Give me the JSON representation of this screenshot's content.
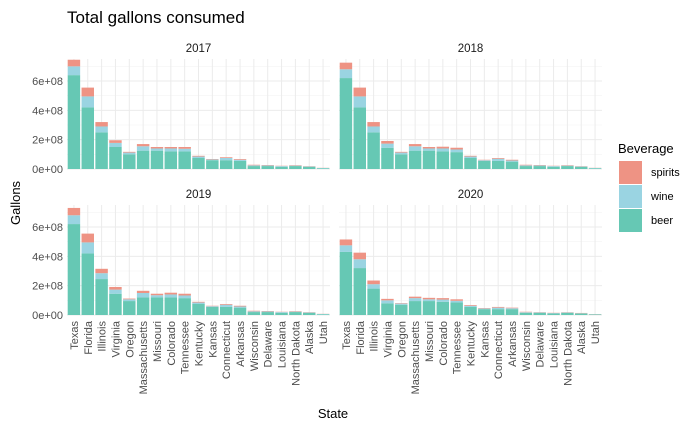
{
  "chart_data": {
    "type": "bar",
    "stacked": true,
    "title": "Total gallons consumed",
    "xlabel": "State",
    "ylabel": "Gallons",
    "ylim": [
      0,
      750000000
    ],
    "yticks": [
      0,
      200000000,
      400000000,
      600000000
    ],
    "ytick_labels": [
      "0e+00",
      "2e+08",
      "4e+08",
      "6e+08"
    ],
    "grid": true,
    "legend": {
      "title": "Beverage",
      "placement": "right",
      "entries": [
        "spirits",
        "wine",
        "beer"
      ]
    },
    "colors": {
      "beer": "#66c8b4",
      "wine": "#9ad4e2",
      "spirits": "#ee9384"
    },
    "categories": [
      "Texas",
      "Florida",
      "Illinois",
      "Virginia",
      "Oregon",
      "Massachusetts",
      "Missouri",
      "Colorado",
      "Tennessee",
      "Kentucky",
      "Kansas",
      "Connecticut",
      "Arkansas",
      "Wisconsin",
      "Delaware",
      "Louisiana",
      "North Dakota",
      "Alaska",
      "Utah"
    ],
    "panels": [
      {
        "label": "2017",
        "series": [
          {
            "name": "beer",
            "values": [
              640000000,
              420000000,
              250000000,
              150000000,
              100000000,
              125000000,
              125000000,
              120000000,
              120000000,
              75000000,
              60000000,
              60000000,
              55000000,
              20000000,
              20000000,
              15000000,
              20000000,
              15000000,
              5000000
            ]
          },
          {
            "name": "wine",
            "values": [
              60000000,
              75000000,
              40000000,
              28000000,
              12000000,
              30000000,
              15000000,
              20000000,
              18000000,
              10000000,
              5000000,
              15000000,
              8000000,
              5000000,
              4000000,
              5000000,
              3000000,
              3000000,
              2000000
            ]
          },
          {
            "name": "spirits",
            "values": [
              45000000,
              60000000,
              30000000,
              18000000,
              5000000,
              15000000,
              10000000,
              10000000,
              12000000,
              5000000,
              3000000,
              5000000,
              5000000,
              4000000,
              3000000,
              2000000,
              3000000,
              2000000,
              1000000
            ]
          }
        ]
      },
      {
        "label": "2018",
        "series": [
          {
            "name": "beer",
            "values": [
              620000000,
              420000000,
              250000000,
              145000000,
              100000000,
              125000000,
              125000000,
              120000000,
              115000000,
              75000000,
              55000000,
              55000000,
              50000000,
              20000000,
              20000000,
              15000000,
              20000000,
              15000000,
              5000000
            ]
          },
          {
            "name": "wine",
            "values": [
              60000000,
              75000000,
              40000000,
              28000000,
              12000000,
              30000000,
              15000000,
              20000000,
              18000000,
              10000000,
              5000000,
              15000000,
              8000000,
              5000000,
              4000000,
              5000000,
              3000000,
              3000000,
              2000000
            ]
          },
          {
            "name": "spirits",
            "values": [
              45000000,
              60000000,
              30000000,
              18000000,
              5000000,
              15000000,
              10000000,
              12000000,
              12000000,
              5000000,
              3000000,
              5000000,
              5000000,
              4000000,
              3000000,
              2000000,
              3000000,
              2000000,
              1000000
            ]
          }
        ]
      },
      {
        "label": "2019",
        "series": [
          {
            "name": "beer",
            "values": [
              620000000,
              420000000,
              245000000,
              145000000,
              95000000,
              120000000,
              120000000,
              120000000,
              115000000,
              75000000,
              55000000,
              55000000,
              50000000,
              20000000,
              20000000,
              15000000,
              20000000,
              15000000,
              5000000
            ]
          },
          {
            "name": "wine",
            "values": [
              60000000,
              75000000,
              40000000,
              28000000,
              12000000,
              30000000,
              15000000,
              20000000,
              18000000,
              10000000,
              5000000,
              15000000,
              8000000,
              5000000,
              4000000,
              5000000,
              3000000,
              3000000,
              2000000
            ]
          },
          {
            "name": "spirits",
            "values": [
              50000000,
              60000000,
              30000000,
              18000000,
              5000000,
              15000000,
              10000000,
              12000000,
              12000000,
              5000000,
              3000000,
              5000000,
              5000000,
              4000000,
              3000000,
              2000000,
              3000000,
              2000000,
              1000000
            ]
          }
        ]
      },
      {
        "label": "2020",
        "series": [
          {
            "name": "beer",
            "values": [
              430000000,
              320000000,
              180000000,
              80000000,
              70000000,
              95000000,
              95000000,
              90000000,
              85000000,
              55000000,
              40000000,
              40000000,
              40000000,
              15000000,
              15000000,
              10000000,
              15000000,
              10000000,
              4000000
            ]
          },
          {
            "name": "wine",
            "values": [
              45000000,
              60000000,
              30000000,
              20000000,
              8000000,
              20000000,
              12000000,
              15000000,
              12000000,
              8000000,
              4000000,
              10000000,
              6000000,
              4000000,
              3000000,
              3000000,
              2000000,
              2000000,
              1000000
            ]
          },
          {
            "name": "spirits",
            "values": [
              40000000,
              45000000,
              25000000,
              10000000,
              3000000,
              10000000,
              10000000,
              10000000,
              10000000,
              5000000,
              3000000,
              5000000,
              4000000,
              3000000,
              2000000,
              2000000,
              2000000,
              2000000,
              1000000
            ]
          }
        ]
      }
    ]
  }
}
